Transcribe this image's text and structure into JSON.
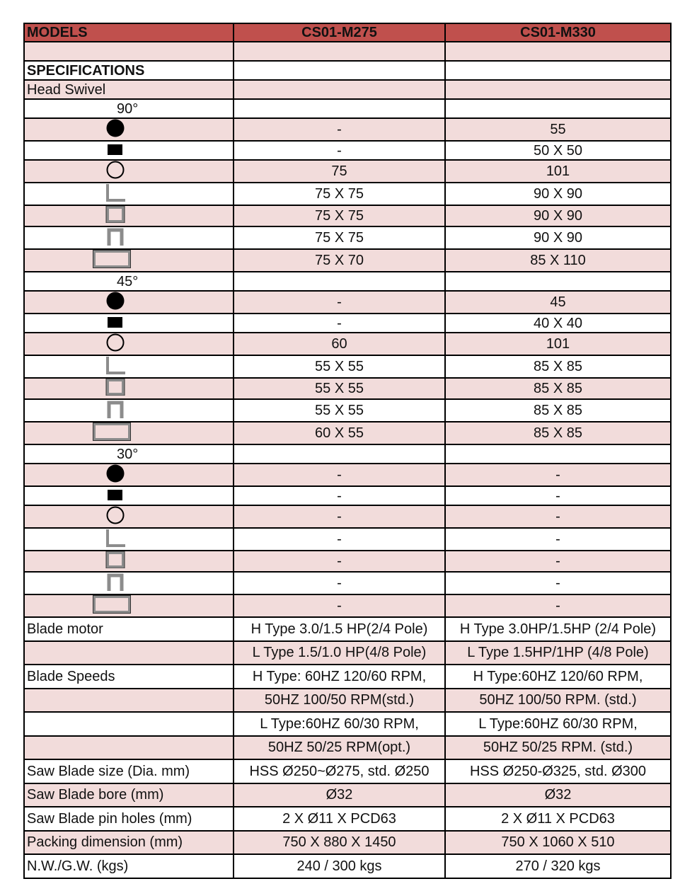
{
  "colors": {
    "header": "#c0504d",
    "stripe": "#f2dcdb",
    "icon_gray": "#8c8c8c"
  },
  "header": {
    "label": "MODELS",
    "models": [
      "CS01-M275",
      "CS01-M330"
    ]
  },
  "rows": [
    {
      "label": "",
      "m1": "",
      "m2": ""
    },
    {
      "label": "SPECIFICATIONS",
      "m1": "",
      "m2": "",
      "bold": true
    },
    {
      "label": "Head Swivel",
      "m1": "",
      "m2": ""
    },
    {
      "label": "90°",
      "m1": "",
      "m2": "",
      "deg": true
    },
    {
      "icon": "solid-round-bar-icon",
      "m1": "-",
      "m2": "55"
    },
    {
      "icon": "solid-square-bar-icon",
      "m1": "-",
      "m2": "50 X 50"
    },
    {
      "icon": "round-tube-icon",
      "m1": "75",
      "m2": "101"
    },
    {
      "icon": "angle-iron-icon",
      "m1": "75 X 75",
      "m2": "90 X 90"
    },
    {
      "icon": "square-tube-icon",
      "m1": "75 X 75",
      "m2": "90 X 90"
    },
    {
      "icon": "channel-icon",
      "m1": "75 X 75",
      "m2": "90 X 90"
    },
    {
      "icon": "rectangular-tube-icon",
      "m1": "75 X 70",
      "m2": "85 X 110"
    },
    {
      "label": "45°",
      "m1": "",
      "m2": "",
      "deg": true
    },
    {
      "icon": "solid-round-bar-icon",
      "m1": "-",
      "m2": "45"
    },
    {
      "icon": "solid-square-bar-icon",
      "m1": "-",
      "m2": "40 X 40"
    },
    {
      "icon": "round-tube-icon",
      "m1": "60",
      "m2": "101"
    },
    {
      "icon": "angle-iron-icon",
      "m1": "55 X 55",
      "m2": "85 X 85"
    },
    {
      "icon": "square-tube-icon",
      "m1": "55 X 55",
      "m2": "85 X 85"
    },
    {
      "icon": "channel-icon",
      "m1": "55 X 55",
      "m2": "85 X 85"
    },
    {
      "icon": "rectangular-tube-icon",
      "m1": "60 X 55",
      "m2": "85 X 85"
    },
    {
      "label": "30°",
      "m1": "",
      "m2": "",
      "deg": true
    },
    {
      "icon": "solid-round-bar-icon",
      "m1": "-",
      "m2": "-"
    },
    {
      "icon": "solid-square-bar-icon",
      "m1": "-",
      "m2": "-"
    },
    {
      "icon": "round-tube-icon",
      "m1": "-",
      "m2": "-"
    },
    {
      "icon": "angle-iron-icon",
      "m1": "-",
      "m2": "-"
    },
    {
      "icon": "square-tube-icon",
      "m1": "-",
      "m2": "-"
    },
    {
      "icon": "channel-icon",
      "m1": "-",
      "m2": "-"
    },
    {
      "icon": "rectangular-tube-icon",
      "m1": "-",
      "m2": "-"
    },
    {
      "label": "Blade motor",
      "m1": "H Type 3.0/1.5 HP(2/4 Pole)",
      "m2": "H Type 3.0HP/1.5HP (2/4 Pole)",
      "big": true
    },
    {
      "label": "",
      "m1": "L Type 1.5/1.0 HP(4/8 Pole)",
      "m2": "L Type 1.5HP/1HP (4/8 Pole)",
      "big": true
    },
    {
      "label": "Blade Speeds",
      "m1": "H Type: 60HZ 120/60 RPM,",
      "m2": "H Type:60HZ 120/60 RPM,",
      "big": true
    },
    {
      "label": "",
      "m1": "50HZ 100/50 RPM(std.)",
      "m2": "50HZ 100/50 RPM. (std.)",
      "big": true
    },
    {
      "label": "",
      "m1": "L Type:60HZ 60/30 RPM,",
      "m2": "L Type:60HZ 60/30 RPM,",
      "big": true
    },
    {
      "label": "",
      "m1": "50HZ 50/25 RPM(opt.)",
      "m2": "50HZ 50/25 RPM. (std.)",
      "big": true
    },
    {
      "label": "Saw Blade size (Dia. mm)",
      "m1": "HSS Ø250~Ø275,  std.  Ø250",
      "m2": "HSS Ø250-Ø325, std. Ø300",
      "big": true
    },
    {
      "label": "Saw Blade bore (mm)",
      "m1": "Ø32",
      "m2": "Ø32",
      "big": true
    },
    {
      "label": "Saw Blade pin holes (mm)",
      "m1": "2 X Ø11 X PCD63",
      "m2": "2 X Ø11 X PCD63",
      "big": true
    },
    {
      "label": "Packing dimension (mm)",
      "m1": "750 X 880 X 1450",
      "m2": "750 X 1060 X 510",
      "big": true
    },
    {
      "label": "N.W./G.W. (kgs)",
      "m1": "240 / 300 kgs",
      "m2": "270 / 320 kgs",
      "big": true
    }
  ]
}
